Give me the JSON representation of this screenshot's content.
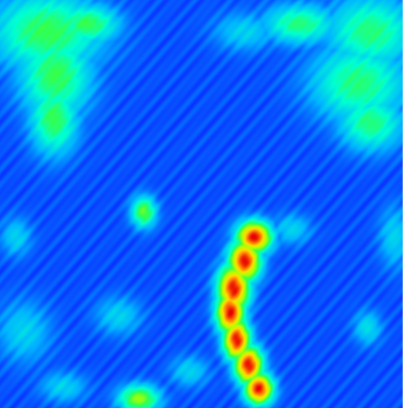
{
  "map": {
    "type": "heatmap",
    "colormap": "jet",
    "colormap_stops": [
      "#0000b4",
      "#0a28ff",
      "#00b4ff",
      "#00ffd2",
      "#32ff50",
      "#b4ff00",
      "#ffdc00",
      "#ff7800",
      "#e60000"
    ],
    "background_level": 0.16,
    "grid": false,
    "legend": "none",
    "features": [
      {
        "name": "top-left-plume",
        "peak_level": 0.5
      },
      {
        "name": "top-right-plume",
        "peak_level": 0.46
      },
      {
        "name": "center-spot",
        "peak_level": 0.55
      },
      {
        "name": "central-ridge",
        "peak_level": 1.0
      },
      {
        "name": "bottom-spot",
        "peak_level": 0.6
      },
      {
        "name": "right-spot",
        "peak_level": 0.32
      },
      {
        "name": "cyan-patches",
        "peak_level": 0.3
      }
    ]
  }
}
